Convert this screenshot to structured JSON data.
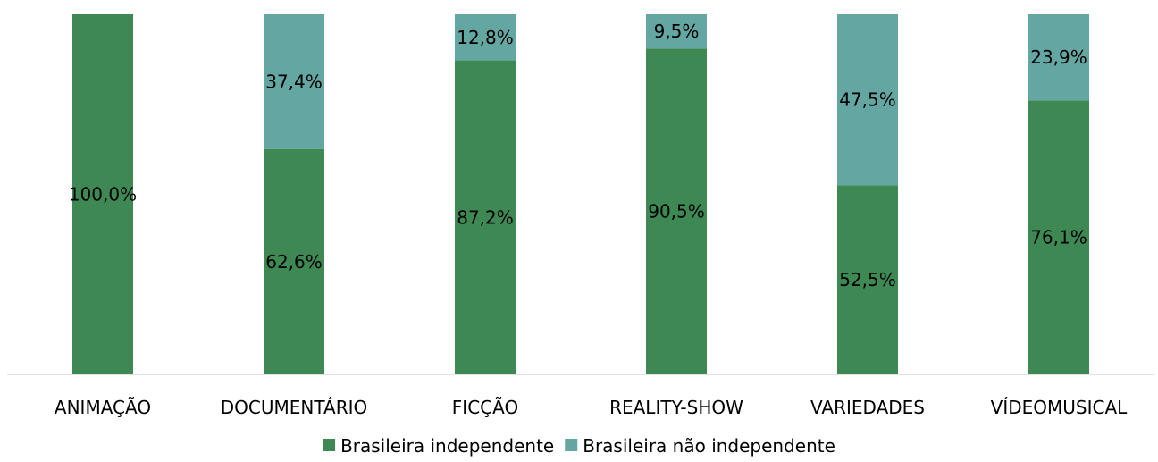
{
  "chart_data": {
    "type": "bar",
    "stacked": true,
    "percent": true,
    "categories": [
      "ANIMAÇÃO",
      "DOCUMENTÁRIO",
      "FICÇÃO",
      "REALITY-SHOW",
      "VARIEDADES",
      "VÍDEOMUSICAL"
    ],
    "series": [
      {
        "name": "Brasileira independente",
        "color": "#3e8853",
        "values": [
          100.0,
          62.6,
          87.2,
          90.5,
          52.5,
          76.1
        ],
        "labels": [
          "100,0%",
          "62,6%",
          "87,2%",
          "90,5%",
          "52,5%",
          "76,1%"
        ]
      },
      {
        "name": "Brasileira não independente",
        "color": "#63a6a2",
        "values": [
          0,
          37.4,
          12.8,
          9.5,
          47.5,
          23.9
        ],
        "labels": [
          "",
          "37,4%",
          "12,8%",
          "9,5%",
          "47,5%",
          "23,9%"
        ]
      }
    ],
    "ylim": [
      0,
      100
    ],
    "grid": false,
    "legend": "bottom-center",
    "title": "",
    "xlabel": "",
    "ylabel": ""
  }
}
